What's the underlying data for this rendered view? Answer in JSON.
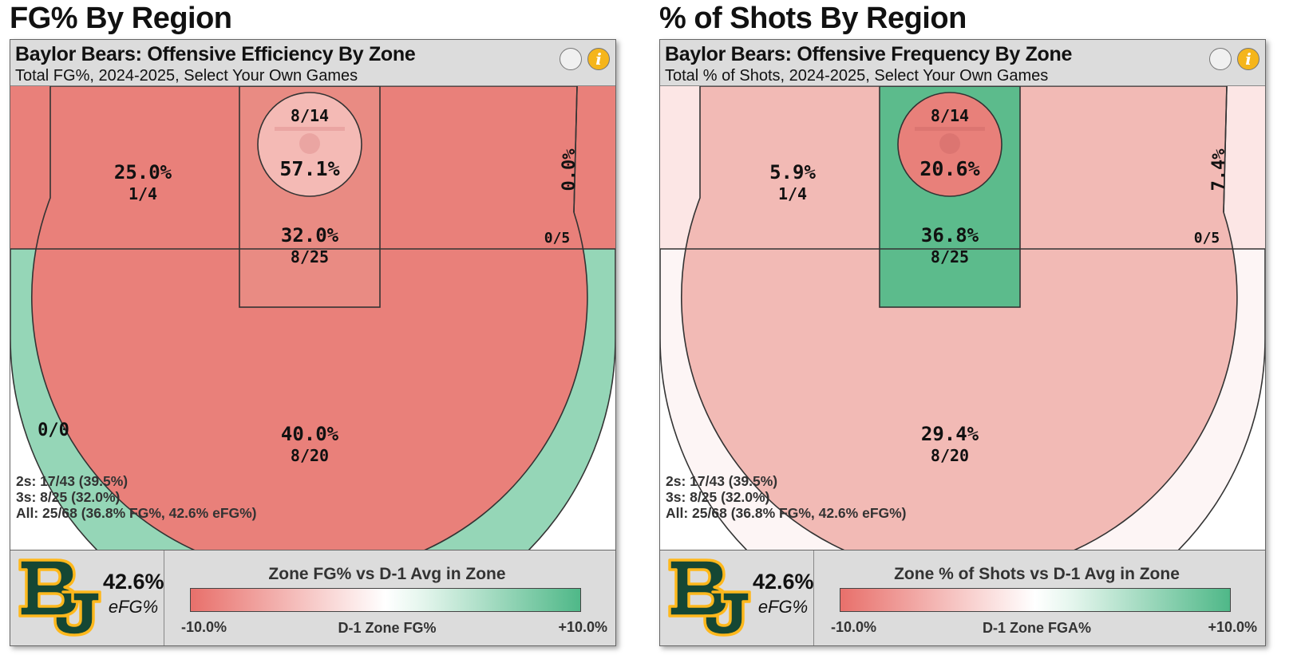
{
  "panels": [
    {
      "section_title": "FG% By Region",
      "title": "Baylor Bears: Offensive Efficiency By Zone",
      "subtitle": "Total FG%, 2024-2025, Select Your Own Games",
      "stats": {
        "twos": "2s: 17/43 (39.5%)",
        "threes": "3s: 8/25 (32.0%)",
        "all": "All: 25/68 (36.8% FG%, 42.6% eFG%)"
      },
      "efg_value": "42.6%",
      "efg_label": "eFG%",
      "legend": {
        "title": "Zone FG% vs D-1 Avg in Zone",
        "min": "-10.0%",
        "mid": "D-1 Zone FG%",
        "max": "+10.0%"
      }
    },
    {
      "section_title": "% of Shots By Region",
      "title": "Baylor Bears: Offensive Frequency By Zone",
      "subtitle": "Total % of Shots, 2024-2025, Select Your Own Games",
      "stats": {
        "twos": "2s: 17/43 (39.5%)",
        "threes": "3s: 8/25 (32.0%)",
        "all": "All: 25/68 (36.8% FG%, 42.6% eFG%)"
      },
      "efg_value": "42.6%",
      "efg_label": "eFG%",
      "legend": {
        "title": "Zone % of Shots vs D-1 Avg in Zone",
        "min": "-10.0%",
        "mid": "D-1 Zone FGA%",
        "max": "+10.0%"
      }
    }
  ],
  "chart_data": [
    {
      "type": "heatmap",
      "zones": [
        {
          "zone": "restricted-area",
          "value": "57.1%",
          "made_att": "8/14",
          "color": "#f4bab5"
        },
        {
          "zone": "paint",
          "value": "32.0%",
          "made_att": "8/25",
          "color": "#e98b83"
        },
        {
          "zone": "mid-range",
          "value": "25.0%",
          "made_att": "1/4",
          "color": "#e9807a"
        },
        {
          "zone": "corner-three",
          "value": "0.0%",
          "made_att": "0/5",
          "color": "#e9807a"
        },
        {
          "zone": "above-break-three",
          "value": "40.0%",
          "made_att": "8/20",
          "color": "#95d6b7"
        },
        {
          "zone": "left-corner-three",
          "value": "",
          "made_att": "0/0",
          "color": "#ffffff"
        }
      ]
    },
    {
      "type": "heatmap",
      "zones": [
        {
          "zone": "restricted-area",
          "value": "20.6%",
          "made_att": "8/14",
          "color": "#e8807a"
        },
        {
          "zone": "paint",
          "value": "36.8%",
          "made_att": "8/25",
          "color": "#5cbb8c"
        },
        {
          "zone": "mid-range",
          "value": "5.9%",
          "made_att": "1/4",
          "color": "#f2bab5"
        },
        {
          "zone": "corner-three",
          "value": "7.4%",
          "made_att": "0/5",
          "color": "#fce6e5"
        },
        {
          "zone": "above-break-three",
          "value": "29.4%",
          "made_att": "8/20",
          "color": "#fdf5f5"
        },
        {
          "zone": "left-corner-three",
          "value": "",
          "made_att": "",
          "color": "#fce6e5"
        }
      ]
    }
  ],
  "colors": {
    "baylor_green": "#154734",
    "baylor_gold": "#ffb81c",
    "info_button": "#f5b51b"
  }
}
